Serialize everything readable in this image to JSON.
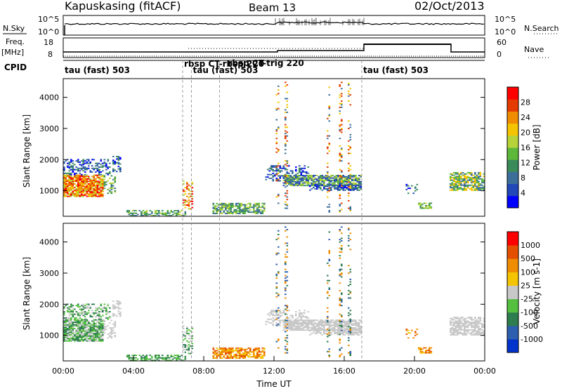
{
  "header": {
    "station": "Kapuskasing (fitACF)",
    "beam": "Beam 13",
    "date": "02/Oct/2013"
  },
  "panels": {
    "nsky_label": "N.Sky",
    "nsearch_label": "N.Search",
    "nsky_ticks": [
      "10^5",
      "10^0"
    ],
    "nsearch_ticks": [
      "10^5",
      "10^0"
    ],
    "freq_label": "Freq.",
    "freq_unit": "[MHz]",
    "freq_ticks": [
      "18",
      "8"
    ],
    "nave_label": "Nave",
    "nave_ticks": [
      "60",
      "0"
    ],
    "cpid_label": "CPID",
    "cpid_segments": [
      {
        "label": "tau (fast) 503",
        "start": 0,
        "end": 6.8
      },
      {
        "label": "rbsp CT-rbsp 220",
        "start": 6.8,
        "end": 7.3
      },
      {
        "label": "tau (fast) 503",
        "start": 7.3,
        "end": 17.0
      },
      {
        "label": "rbsp CT-trig 220",
        "start": 8.9,
        "end": 9.4
      },
      {
        "label": "tau (fast) 503",
        "start": 17.0,
        "end": 24.0
      }
    ]
  },
  "chart_data": [
    {
      "type": "heatmap",
      "name": "power",
      "xlabel": "",
      "ylabel": "Slant Range [km]",
      "xlim": [
        0,
        24
      ],
      "ylim": [
        180,
        4600
      ],
      "yticks": [
        1000,
        2000,
        3000,
        4000
      ],
      "colorbar_label": "Power [dB]",
      "colorbar_ticks": [
        "28",
        "24",
        "20",
        "16",
        "12",
        "8",
        "4"
      ],
      "colorbar_colors": [
        "#0000ff",
        "#2147b8",
        "#3b6f9a",
        "#3a8a5a",
        "#5db83a",
        "#b6d33a",
        "#f5c400",
        "#f08c00",
        "#e53a00",
        "#ff0000"
      ]
    },
    {
      "type": "heatmap",
      "name": "velocity",
      "xlabel": "Time UT",
      "ylabel": "Slant Range [km]",
      "xlim": [
        0,
        24
      ],
      "ylim": [
        180,
        4600
      ],
      "yticks": [
        1000,
        2000,
        3000,
        4000
      ],
      "xticks": [
        "00:00",
        "04:00",
        "08:00",
        "12:00",
        "16:00",
        "20:00",
        "00:00"
      ],
      "colorbar_label": "Velocity [m s-1]",
      "colorbar_ticks": [
        "1000",
        "500",
        "100",
        "25",
        "-25",
        "-100",
        "-500",
        "-1000"
      ],
      "colorbar_colors": [
        "#0033cc",
        "#2d5fae",
        "#2e7d4f",
        "#55c040",
        "#c8c8c8",
        "#f5c400",
        "#f08c00",
        "#e55000",
        "#ff0000"
      ]
    }
  ]
}
